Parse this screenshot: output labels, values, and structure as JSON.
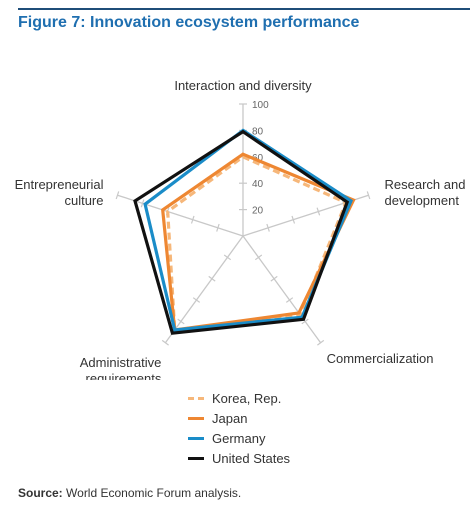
{
  "title": "Figure 7: Innovation ecosystem performance",
  "source": {
    "label": "Source:",
    "text": "World Economic Forum analysis."
  },
  "colors": {
    "header_rule": "#1f4e79",
    "title": "#1f6fb0",
    "grid": "#c8c8c8"
  },
  "chart_data": {
    "type": "radar",
    "axes": [
      "Interaction and diversity",
      "Research and development",
      "Commercialization",
      "Administrative requirements",
      "Entrepreneurial culture"
    ],
    "rlim": [
      0,
      100
    ],
    "ticks": [
      "20",
      "40",
      "60",
      "80",
      "100"
    ],
    "grid": true,
    "legend_position": "bottom",
    "series": [
      {
        "name": "Korea, Rep.",
        "color": "#f6b77a",
        "dashed": true,
        "values": [
          60,
          82,
          74,
          88,
          60
        ]
      },
      {
        "name": "Japan",
        "color": "#ee8732",
        "dashed": false,
        "values": [
          62,
          88,
          72,
          88,
          64
        ]
      },
      {
        "name": "Germany",
        "color": "#1a8cc8",
        "dashed": false,
        "values": [
          80,
          86,
          76,
          88,
          78
        ]
      },
      {
        "name": "United States",
        "color": "#111111",
        "dashed": false,
        "values": [
          79,
          83,
          78,
          91,
          86
        ]
      }
    ]
  }
}
